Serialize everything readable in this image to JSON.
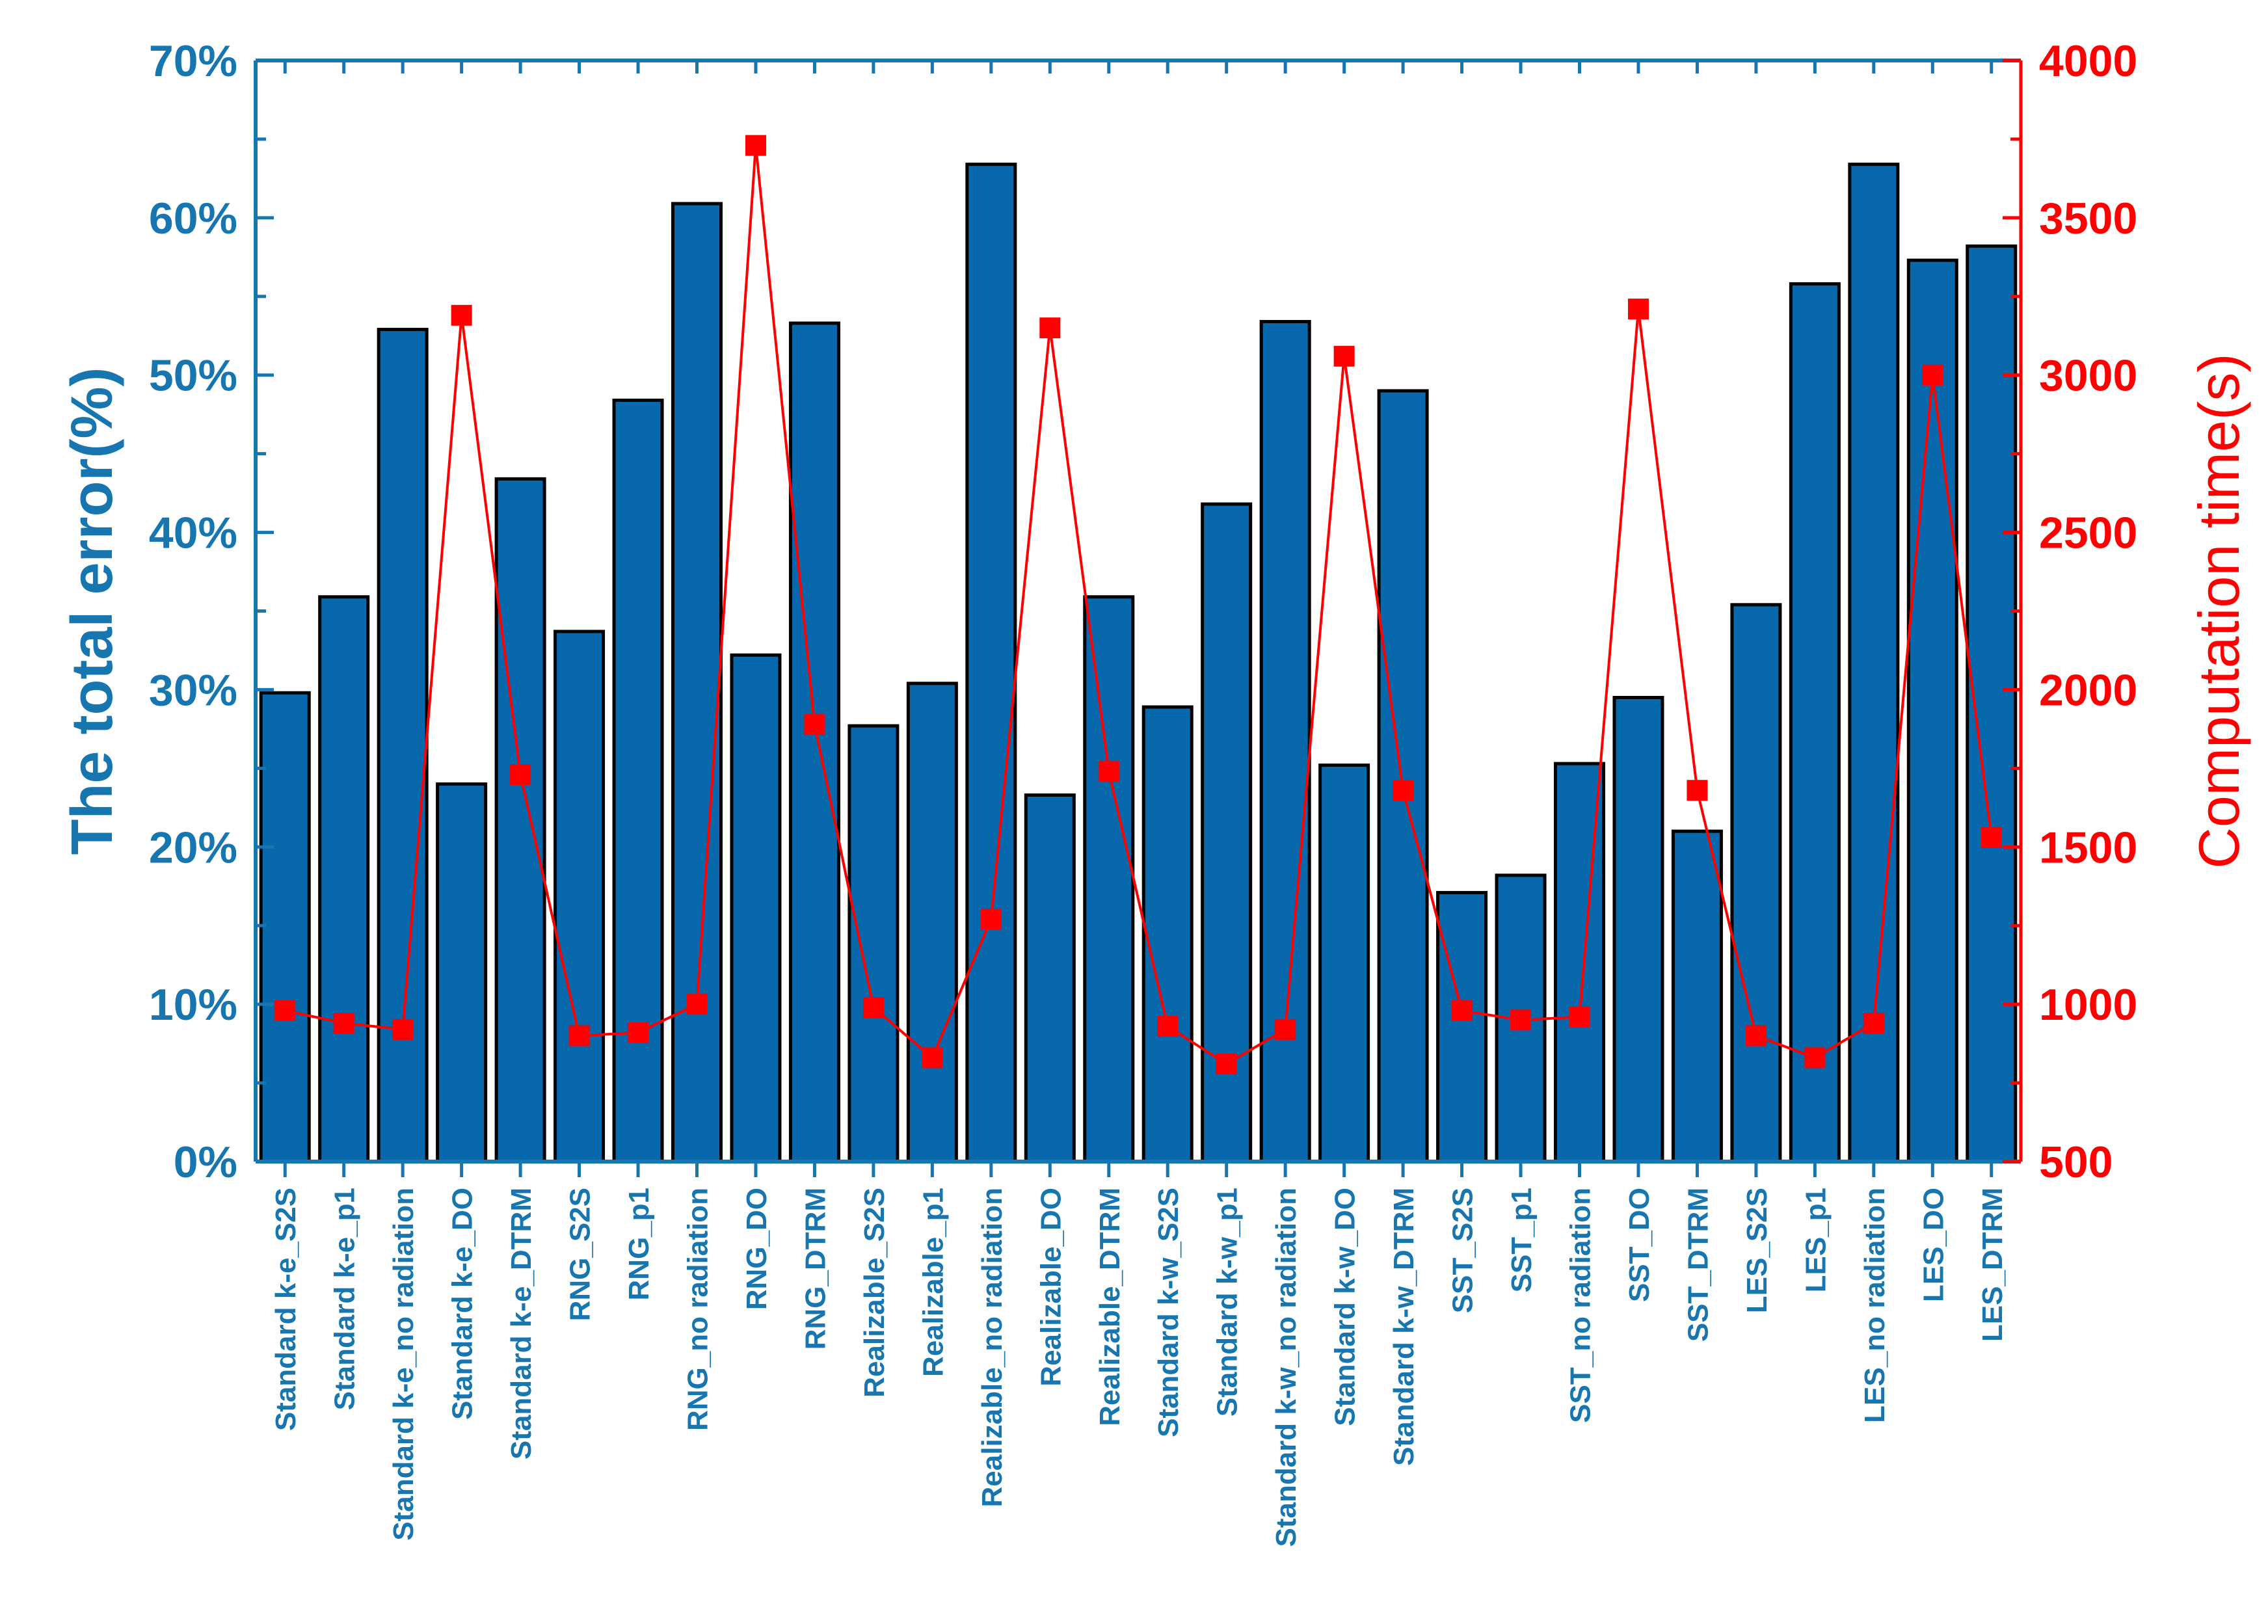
{
  "chart_data": {
    "type": "bar",
    "title": "",
    "xlabel": "",
    "ylabel": "The total error(%)",
    "y2label": "Computation time(s)",
    "ylim": [
      0,
      70
    ],
    "y2lim": [
      500,
      4000
    ],
    "yticks": [
      "0%",
      "10%",
      "20%",
      "30%",
      "40%",
      "50%",
      "60%",
      "70%"
    ],
    "y2ticks": [
      "500",
      "1000",
      "1500",
      "2000",
      "2500",
      "3000",
      "3500",
      "4000"
    ],
    "categories": [
      "Standard k-e_S2S",
      "Standard k-e_p1",
      "Standard k-e_no radiation",
      "Standard k-e_DO",
      "Standard k-e_DTRM",
      "RNG_S2S",
      "RNG_p1",
      "RNG_no radiation",
      "RNG_DO",
      "RNG_DTRM",
      "Realizable_S2S",
      "Realizable_p1",
      "Realizable_no radiation",
      "Realizable_DO",
      "Realizable_DTRM",
      "Standard k-w_S2S",
      "Standard k-w_p1",
      "Standard k-w_no radiation",
      "Standard k-w_DO",
      "Standard k-w_DTRM",
      "SST_S2S",
      "SST_p1",
      "SST_no radiation",
      "SST_DO",
      "SST_DTRM",
      "LES_S2S",
      "LES_p1",
      "LES_no radiation",
      "LES_DO",
      "LES_DTRM"
    ],
    "series": [
      {
        "name": "The total error(%)",
        "axis": "left",
        "kind": "bar",
        "values": [
          29.8,
          35.9,
          52.9,
          24.0,
          43.4,
          33.7,
          48.4,
          60.9,
          32.2,
          53.3,
          27.7,
          30.4,
          63.4,
          23.3,
          35.9,
          28.9,
          41.8,
          53.4,
          25.2,
          49.0,
          17.1,
          18.2,
          25.3,
          29.5,
          21.0,
          35.4,
          55.8,
          63.4,
          57.3,
          58.2
        ]
      },
      {
        "name": "Computation time(s)",
        "axis": "right",
        "kind": "line",
        "values": [
          980,
          940,
          920,
          3190,
          1730,
          900,
          910,
          1000,
          3730,
          1890,
          990,
          830,
          1270,
          3150,
          1740,
          930,
          810,
          920,
          3060,
          1680,
          980,
          950,
          960,
          3210,
          1680,
          900,
          830,
          940,
          3000,
          1530
        ]
      }
    ],
    "colors": {
      "bar_fill": "#0868AC",
      "bar_stroke": "#000000",
      "left_axis": "#1776B0",
      "right_axis": "#FF0000",
      "line": "#FF0000"
    }
  }
}
